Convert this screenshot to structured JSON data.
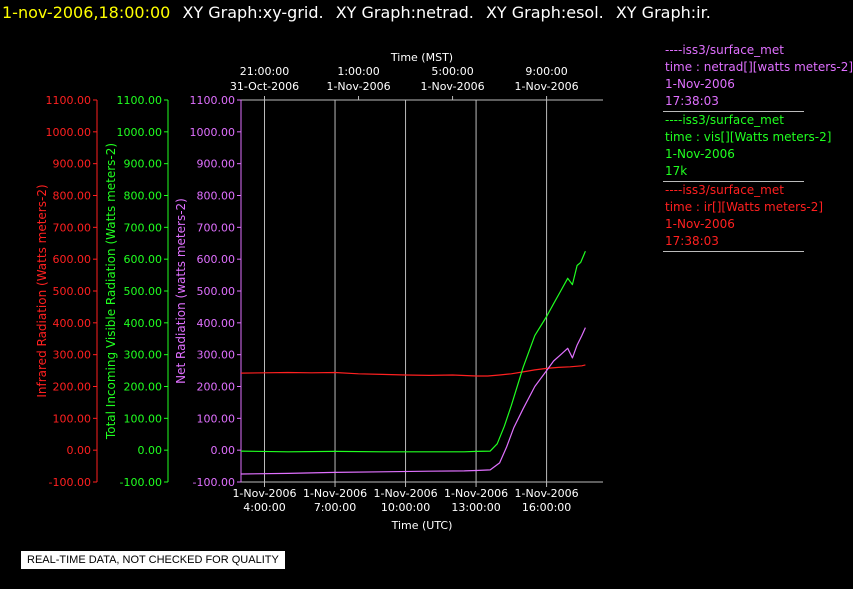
{
  "header": {
    "date": "1-nov-2006,18:00:00",
    "titles": [
      "XY Graph:xy-grid.",
      "XY Graph:netrad.",
      "XY Graph:esol.",
      "XY Graph:ir."
    ]
  },
  "colors": {
    "ir": "#ff2020",
    "vis": "#20ff20",
    "net": "#e070ff",
    "grid": "#bbbbbb"
  },
  "legend": [
    {
      "color": "#e070ff",
      "lines": [
        "----iss3/surface_met",
        "time : netrad[][watts meters-2]",
        "1-Nov-2006",
        "17:38:03"
      ]
    },
    {
      "color": "#20ff20",
      "lines": [
        "----iss3/surface_met",
        "time : vis[][Watts meters-2]",
        "1-Nov-2006",
        "17k"
      ]
    },
    {
      "color": "#ff2020",
      "lines": [
        "----iss3/surface_met",
        "time : ir[][Watts meters-2]",
        "1-Nov-2006",
        "17:38:03"
      ]
    }
  ],
  "note": "REAL-TIME DATA, NOT CHECKED FOR QUALITY",
  "chart_data": {
    "type": "line",
    "x_unit": "hours UTC on 1-Nov-2006",
    "xlim": [
      3.0,
      18.4
    ],
    "ylim": [
      -100,
      1100
    ],
    "ytick_labels": [
      "-100.00",
      "0.00",
      "100.00",
      "200.00",
      "300.00",
      "400.00",
      "500.00",
      "600.00",
      "700.00",
      "800.00",
      "900.00",
      "1000.00",
      "1100.00"
    ],
    "ytick_values": [
      -100,
      0,
      100,
      200,
      300,
      400,
      500,
      600,
      700,
      800,
      900,
      1000,
      1100
    ],
    "axes": [
      {
        "label": "Infrared Radiation (Watts meters-2)",
        "color": "#ff2020"
      },
      {
        "label": "Total Incoming Visible Radiation (Watts meters-2)",
        "color": "#20ff20"
      },
      {
        "label": "Net Radiation (watts meters-2)",
        "color": "#e070ff"
      }
    ],
    "xlabel_bottom": "Time (UTC)",
    "xlabel_top": "Time (MST)",
    "bottom_ticks": [
      {
        "x": 4,
        "date": "1-Nov-2006",
        "time": "4:00:00"
      },
      {
        "x": 7,
        "date": "1-Nov-2006",
        "time": "7:00:00"
      },
      {
        "x": 10,
        "date": "1-Nov-2006",
        "time": "10:00:00"
      },
      {
        "x": 13,
        "date": "1-Nov-2006",
        "time": "13:00:00"
      },
      {
        "x": 16,
        "date": "1-Nov-2006",
        "time": "16:00:00"
      }
    ],
    "top_ticks": [
      {
        "x": 4,
        "time": "21:00:00",
        "date": "31-Oct-2006"
      },
      {
        "x": 8,
        "time": "1:00:00",
        "date": "1-Nov-2006"
      },
      {
        "x": 12,
        "time": "5:00:00",
        "date": "1-Nov-2006"
      },
      {
        "x": 16,
        "time": "9:00:00",
        "date": "1-Nov-2006"
      }
    ],
    "grid": true,
    "series": [
      {
        "name": "time : ir[][Watts meters-2]",
        "color": "#ff2020",
        "x": [
          3.0,
          4.0,
          5.0,
          6.0,
          7.0,
          8.0,
          9.0,
          10.0,
          11.0,
          12.0,
          13.0,
          13.5,
          14.0,
          14.5,
          15.0,
          15.5,
          16.0,
          16.5,
          17.0,
          17.5,
          17.65
        ],
        "y": [
          242,
          243,
          244,
          243,
          244,
          240,
          238,
          236,
          235,
          236,
          233,
          233,
          236,
          240,
          246,
          252,
          257,
          260,
          262,
          265,
          268
        ]
      },
      {
        "name": "time : vis[][Watts meters-2]",
        "color": "#20ff20",
        "x": [
          3.0,
          5.0,
          7.0,
          9.0,
          11.0,
          12.5,
          13.0,
          13.6,
          13.9,
          14.2,
          14.5,
          15.0,
          15.5,
          16.0,
          16.3,
          16.6,
          16.9,
          17.1,
          17.3,
          17.45,
          17.65
        ],
        "y": [
          -3,
          -5,
          -4,
          -5,
          -5,
          -5,
          -4,
          -3,
          20,
          75,
          140,
          260,
          360,
          420,
          460,
          500,
          540,
          520,
          580,
          590,
          625
        ]
      },
      {
        "name": "time : netrad[][watts meters-2]",
        "color": "#e070ff",
        "x": [
          3.0,
          5.0,
          7.0,
          9.0,
          11.0,
          12.5,
          13.0,
          13.6,
          14.0,
          14.3,
          14.6,
          15.0,
          15.5,
          16.0,
          16.3,
          16.6,
          16.9,
          17.1,
          17.3,
          17.5,
          17.65
        ],
        "y": [
          -75,
          -73,
          -70,
          -68,
          -66,
          -65,
          -64,
          -62,
          -40,
          10,
          70,
          130,
          200,
          250,
          280,
          300,
          320,
          290,
          330,
          360,
          385
        ]
      }
    ]
  }
}
